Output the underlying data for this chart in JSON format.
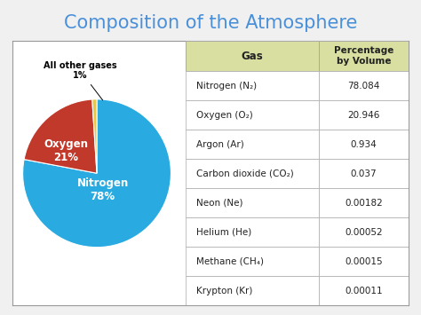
{
  "title": "Composition of the Atmosphere",
  "title_color": "#4A90D9",
  "title_fontsize": 15,
  "background_color": "#f0f0f0",
  "pie_data": [
    78,
    21,
    1
  ],
  "pie_colors": [
    "#29ABE2",
    "#C0392B",
    "#E8C840"
  ],
  "pie_nitrogen_label": "Nitrogen\n78%",
  "pie_oxygen_label": "Oxygen\n21%",
  "outer_label_text": "All other gases\n1%",
  "table_header": [
    "Gas",
    "Percentage\nby Volume"
  ],
  "table_header_bg": "#D8DFA0",
  "table_rows": [
    [
      "Nitrogen (N₂)",
      "78.084"
    ],
    [
      "Oxygen (O₂)",
      "20.946"
    ],
    [
      "Argon (Ar)",
      "0.934"
    ],
    [
      "Carbon dioxide (CO₂)",
      "0.037"
    ],
    [
      "Neon (Ne)",
      "0.00182"
    ],
    [
      "Helium (He)",
      "0.00052"
    ],
    [
      "Methane (CH₄)",
      "0.00015"
    ],
    [
      "Krypton (Kr)",
      "0.00011"
    ]
  ],
  "table_row_bg_white": "#ffffff",
  "table_row_bg_gray": "#f0f0f0",
  "border_color": "#aaaaaa",
  "box_bg": "#ffffff",
  "box_border": "#999999"
}
